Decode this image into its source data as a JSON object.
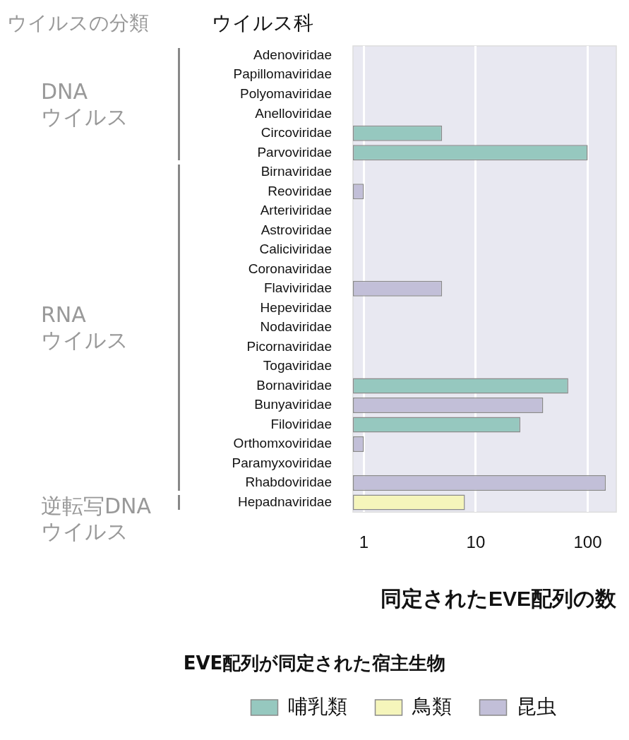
{
  "chart_data": {
    "type": "bar",
    "orientation": "horizontal",
    "ylabel": "ウイルス科",
    "xlabel": "同定されたEVE配列の数",
    "legend_title": "EVE配列が同定された宿主生物",
    "legend": "bottom",
    "log": "x",
    "grid": "x",
    "xlim": [
      0.8,
      180
    ],
    "xticks": [
      1,
      10,
      100
    ],
    "categories": [
      "Adenoviridae",
      "Papillomaviridae",
      "Polyomaviridae",
      "Anelloviridae",
      "Circoviridae",
      "Parvoviridae",
      "Birnaviridae",
      "Reoviridae",
      "Arteriviridae",
      "Astroviridae",
      "Caliciviridae",
      "Coronaviridae",
      "Flaviviridae",
      "Hepeviridae",
      "Nodaviridae",
      "Picornaviridae",
      "Togaviridae",
      "Bornaviridae",
      "Bunyaviridae",
      "Filoviridae",
      "Orthomxoviridae",
      "Paramyxoviridae",
      "Rhabdoviridae",
      "Hepadnaviridae"
    ],
    "series": [
      {
        "name": "哺乳類",
        "color": "#96c8bf",
        "values": [
          null,
          null,
          null,
          null,
          5,
          100,
          null,
          null,
          null,
          null,
          null,
          null,
          null,
          null,
          null,
          null,
          null,
          67,
          null,
          25,
          null,
          null,
          null,
          null
        ]
      },
      {
        "name": "鳥類",
        "color": "#f5f5bb",
        "values": [
          null,
          null,
          null,
          null,
          null,
          null,
          null,
          null,
          null,
          null,
          null,
          null,
          null,
          null,
          null,
          null,
          null,
          null,
          null,
          null,
          null,
          null,
          null,
          8
        ]
      },
      {
        "name": "昆虫",
        "color": "#c2bfd8",
        "values": [
          null,
          null,
          null,
          null,
          null,
          null,
          null,
          1,
          null,
          null,
          null,
          null,
          5,
          null,
          null,
          null,
          null,
          null,
          40,
          null,
          1,
          null,
          145,
          null
        ]
      }
    ],
    "annotations": [
      "ウイルスの分類",
      "DNA\nウイルス",
      "RNA\nウイルス",
      "逆転写DNA\nウイルス"
    ]
  }
}
